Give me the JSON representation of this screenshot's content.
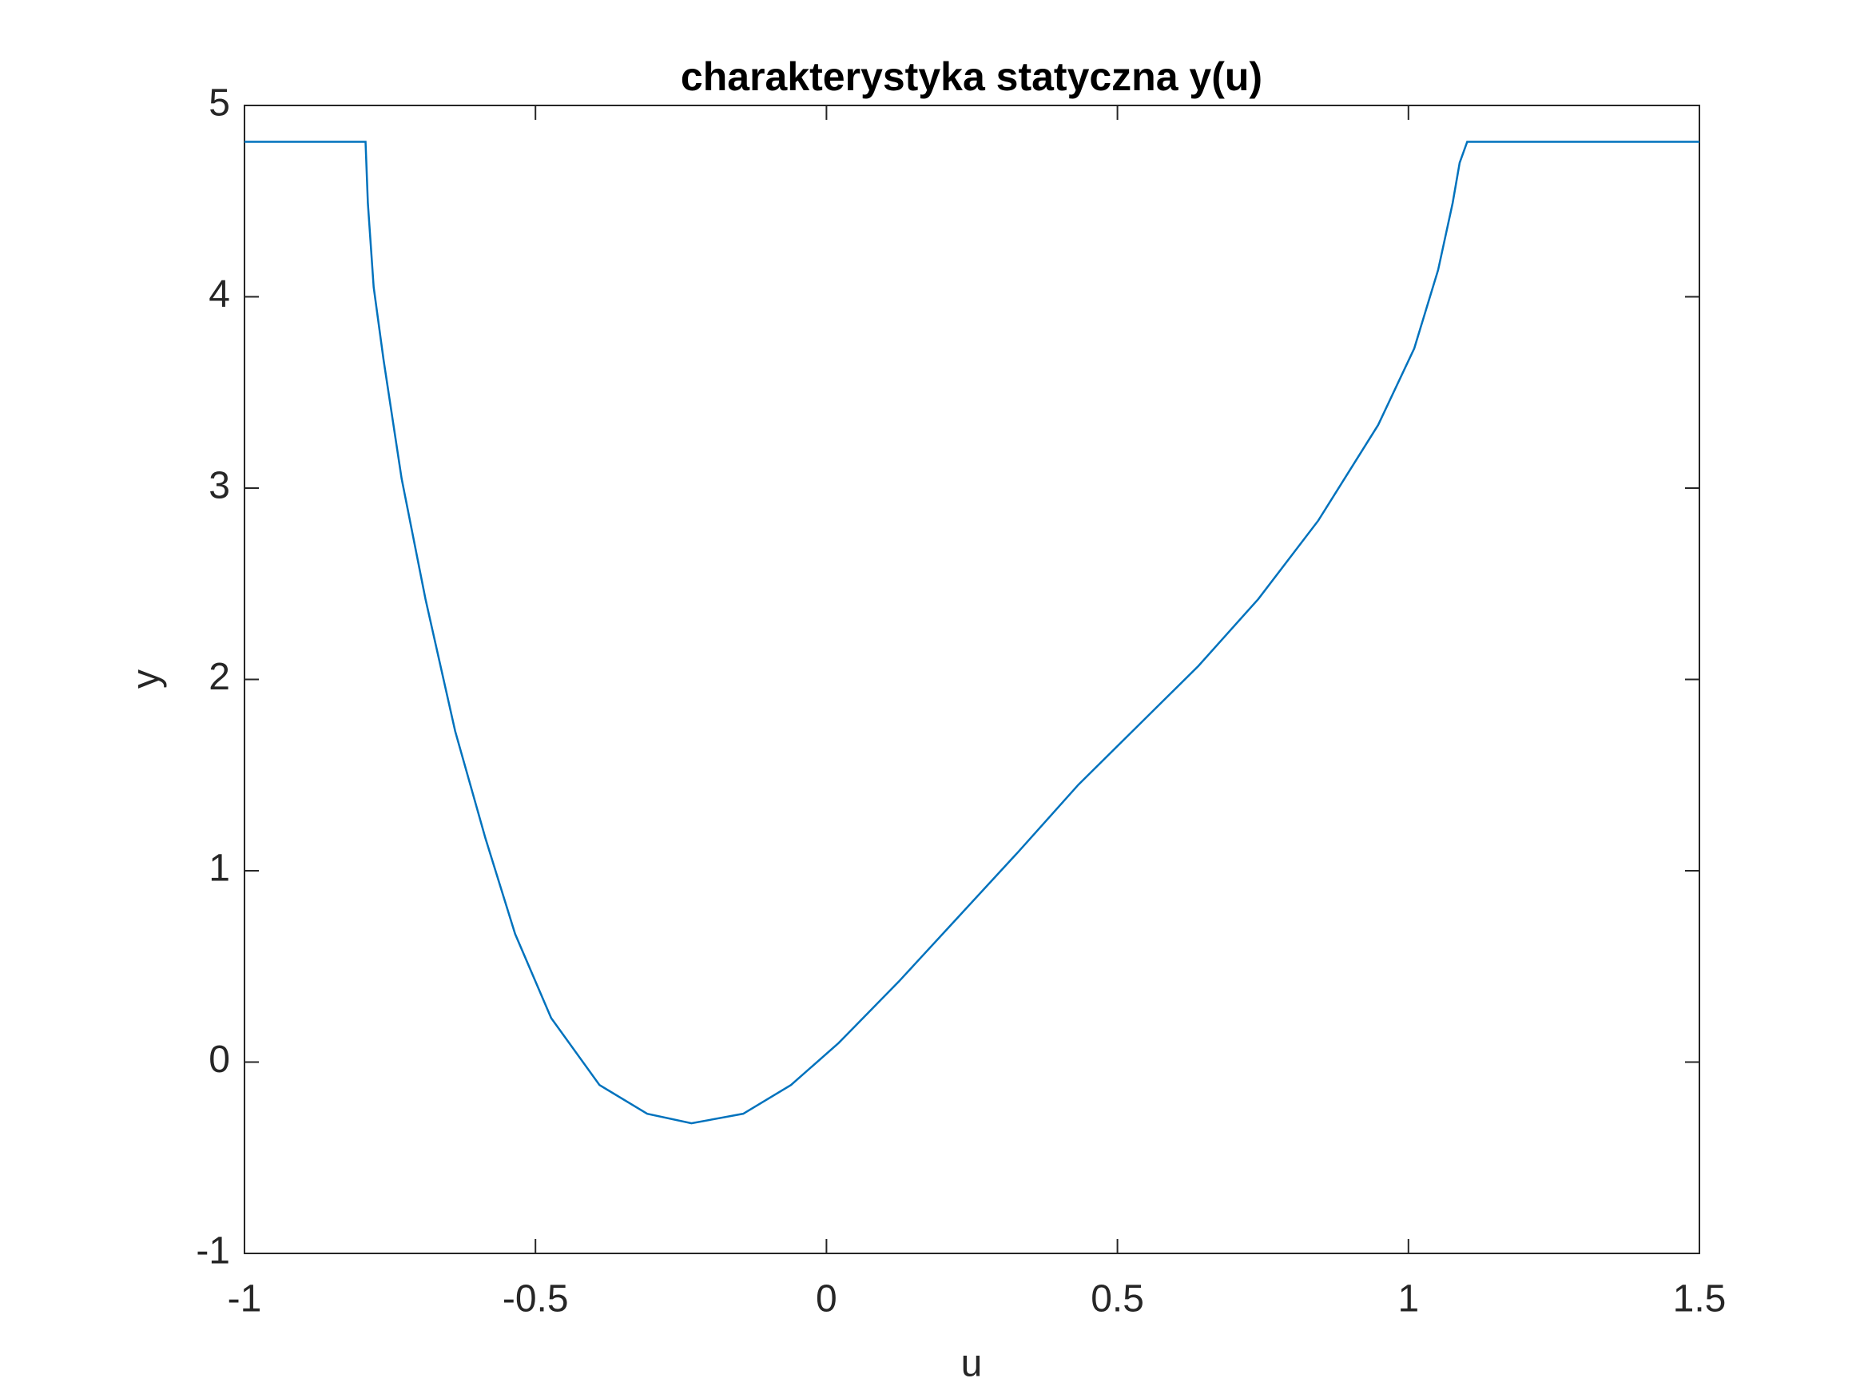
{
  "chart_data": {
    "type": "line",
    "title": "charakterystyka statyczna y(u)",
    "x_label": "u",
    "y_label": "y",
    "x": [
      -1,
      -0.792,
      -0.788,
      -0.778,
      -0.761,
      -0.73,
      -0.689,
      -0.638,
      -0.586,
      -0.535,
      -0.473,
      -0.39,
      -0.308,
      -0.232,
      -0.143,
      -0.061,
      0.021,
      0.124,
      0.227,
      0.33,
      0.433,
      0.536,
      0.639,
      0.742,
      0.845,
      0.948,
      1.01,
      1.051,
      1.076,
      1.088,
      1.101,
      1.5
    ],
    "series": [
      {
        "color": "#0072bd",
        "values": [
          4.81,
          4.81,
          4.49,
          4.05,
          3.67,
          3.05,
          2.42,
          1.73,
          1.17,
          0.67,
          0.23,
          -0.12,
          -0.27,
          -0.32,
          -0.27,
          -0.12,
          0.1,
          0.42,
          0.76,
          1.1,
          1.45,
          1.76,
          2.07,
          2.42,
          2.83,
          3.33,
          3.73,
          4.14,
          4.49,
          4.7,
          4.81,
          4.81
        ]
      }
    ],
    "xlim": [
      -1,
      1.5
    ],
    "ylim": [
      -1,
      5
    ],
    "xticks": [
      -1,
      -0.5,
      0,
      0.5,
      1,
      1.5
    ],
    "yticks": [
      -1,
      0,
      1,
      2,
      3,
      4,
      5
    ]
  }
}
